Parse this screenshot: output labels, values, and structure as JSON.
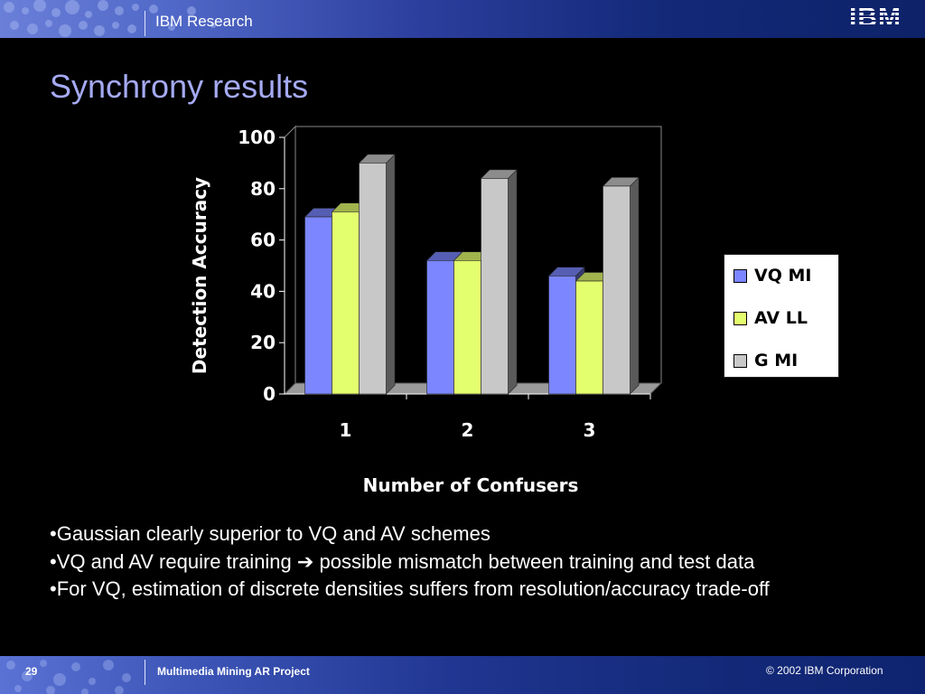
{
  "header": {
    "title": "IBM Research",
    "logo_text": "IBM"
  },
  "slide": {
    "title": "Synchrony results"
  },
  "chart_data": {
    "type": "bar",
    "categories": [
      "1",
      "2",
      "3"
    ],
    "series": [
      {
        "name": "VQ MI",
        "values": [
          69,
          52,
          46
        ],
        "color": "#7b86ff"
      },
      {
        "name": "AV LL",
        "values": [
          71,
          52,
          44
        ],
        "color": "#e4ff6e"
      },
      {
        "name": "G MI",
        "values": [
          90,
          84,
          81
        ],
        "color": "#c8c8c8"
      }
    ],
    "xlabel": "Number of Confusers",
    "ylabel": "Detection Accuracy",
    "ylim": [
      0,
      100
    ],
    "yticks": [
      "0",
      "20",
      "40",
      "60",
      "80",
      "100"
    ],
    "grid": false,
    "legend_position": "right"
  },
  "bullets": [
    "•Gaussian clearly superior to VQ and AV schemes",
    "•VQ and AV require training",
    "possible mismatch between training and test data",
    "•For VQ, estimation of discrete densities suffers from resolution/accuracy trade-off"
  ],
  "bullet_arrow": "➔",
  "footer": {
    "page_number": "29",
    "project": "Multimedia Mining AR Project",
    "copyright": "© 2002 IBM Corporation"
  },
  "colors": {
    "title": "#a5aaf3",
    "background": "#000000",
    "header_dark": "#142a7a"
  }
}
